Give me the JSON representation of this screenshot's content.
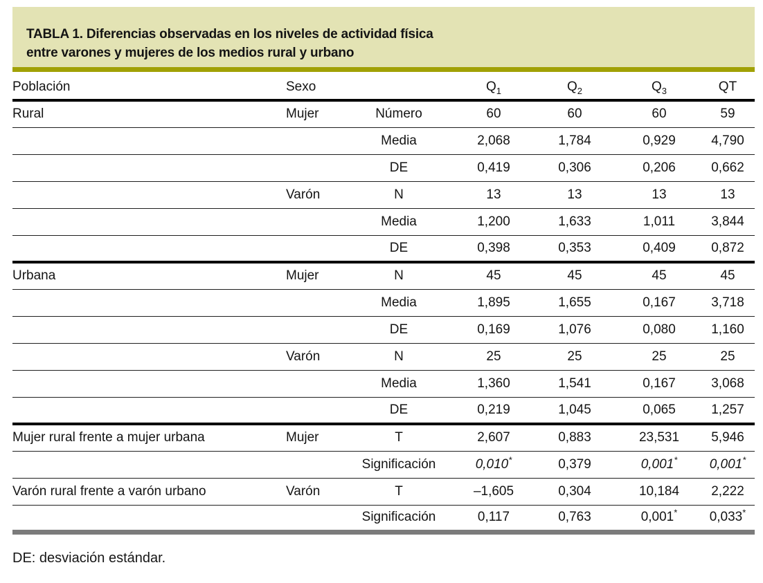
{
  "title": {
    "line1": "TABLA 1. Diferencias observadas en los niveles de actividad física",
    "line2": "entre varones y mujeres de los medios rural y urbano"
  },
  "colors": {
    "title_bg": "#e3e3b4",
    "rule_olive": "#a1a106",
    "bottom_bar": "#7b7b7b"
  },
  "table": {
    "headers": {
      "poblacion": "Población",
      "sexo": "Sexo",
      "stat": "",
      "q1": {
        "base": "Q",
        "sub": "1"
      },
      "q2": {
        "base": "Q",
        "sub": "2"
      },
      "q3": {
        "base": "Q",
        "sub": "3"
      },
      "qt": {
        "base": "QT",
        "sub": ""
      }
    },
    "rows": [
      {
        "poblacion": "Rural",
        "sexo": "Mujer",
        "stat": "Número",
        "q1": "60",
        "q2": "60",
        "q3": "60",
        "qt": "59"
      },
      {
        "stat": "Media",
        "q1": "2,068",
        "q2": "1,784",
        "q3": "0,929",
        "qt": "4,790"
      },
      {
        "stat": "DE",
        "q1": "0,419",
        "q2": "0,306",
        "q3": "0,206",
        "qt": "0,662"
      },
      {
        "sexo": "Varón",
        "stat": "N",
        "q1": "13",
        "q2": "13",
        "q3": "13",
        "qt": "13"
      },
      {
        "stat": "Media",
        "q1": "1,200",
        "q2": "1,633",
        "q3": "1,011",
        "qt": "3,844"
      },
      {
        "stat": "DE",
        "q1": "0,398",
        "q2": "0,353",
        "q3": "0,409",
        "qt": "0,872",
        "thick_after": true
      },
      {
        "poblacion": "Urbana",
        "sexo": "Mujer",
        "stat": "N",
        "q1": "45",
        "q2": "45",
        "q3": "45",
        "qt": "45"
      },
      {
        "stat": "Media",
        "q1": "1,895",
        "q2": "1,655",
        "q3": "0,167",
        "qt": "3,718"
      },
      {
        "stat": "DE",
        "q1": "0,169",
        "q2": "1,076",
        "q3": "0,080",
        "qt": "1,160"
      },
      {
        "sexo": "Varón",
        "stat": "N",
        "q1": "25",
        "q2": "25",
        "q3": "25",
        "qt": "25"
      },
      {
        "stat": "Media",
        "q1": "1,360",
        "q2": "1,541",
        "q3": "0,167",
        "qt": "3,068"
      },
      {
        "stat": "DE",
        "q1": "0,219",
        "q2": "1,045",
        "q3": "0,065",
        "qt": "1,257",
        "thick_after": true
      },
      {
        "poblacion": "Mujer rural frente a mujer urbana",
        "sexo": "Mujer",
        "stat": "T",
        "q1": "2,607",
        "q2": "0,883",
        "q3": "23,531",
        "qt": "5,946"
      },
      {
        "stat": "Significación",
        "q1": {
          "text": "0,010",
          "star": true,
          "italic": true
        },
        "q2": "0,379",
        "q3": {
          "text": "0,001",
          "star": true,
          "italic": true
        },
        "qt": {
          "text": "0,001",
          "star": true,
          "italic": true
        }
      },
      {
        "poblacion": "Varón rural frente a varón urbano",
        "sexo": "Varón",
        "stat": "T",
        "q1": "–1,605",
        "q2": "0,304",
        "q3": "10,184",
        "qt": "2,222"
      },
      {
        "stat": "Significación",
        "q1": "0,117",
        "q2": "0,763",
        "q3": {
          "text": "0,001",
          "star": true,
          "italic": false
        },
        "qt": {
          "text": "0,033",
          "star": true,
          "italic": false
        },
        "last": true
      }
    ]
  },
  "footnote": "DE: desviación estándar."
}
